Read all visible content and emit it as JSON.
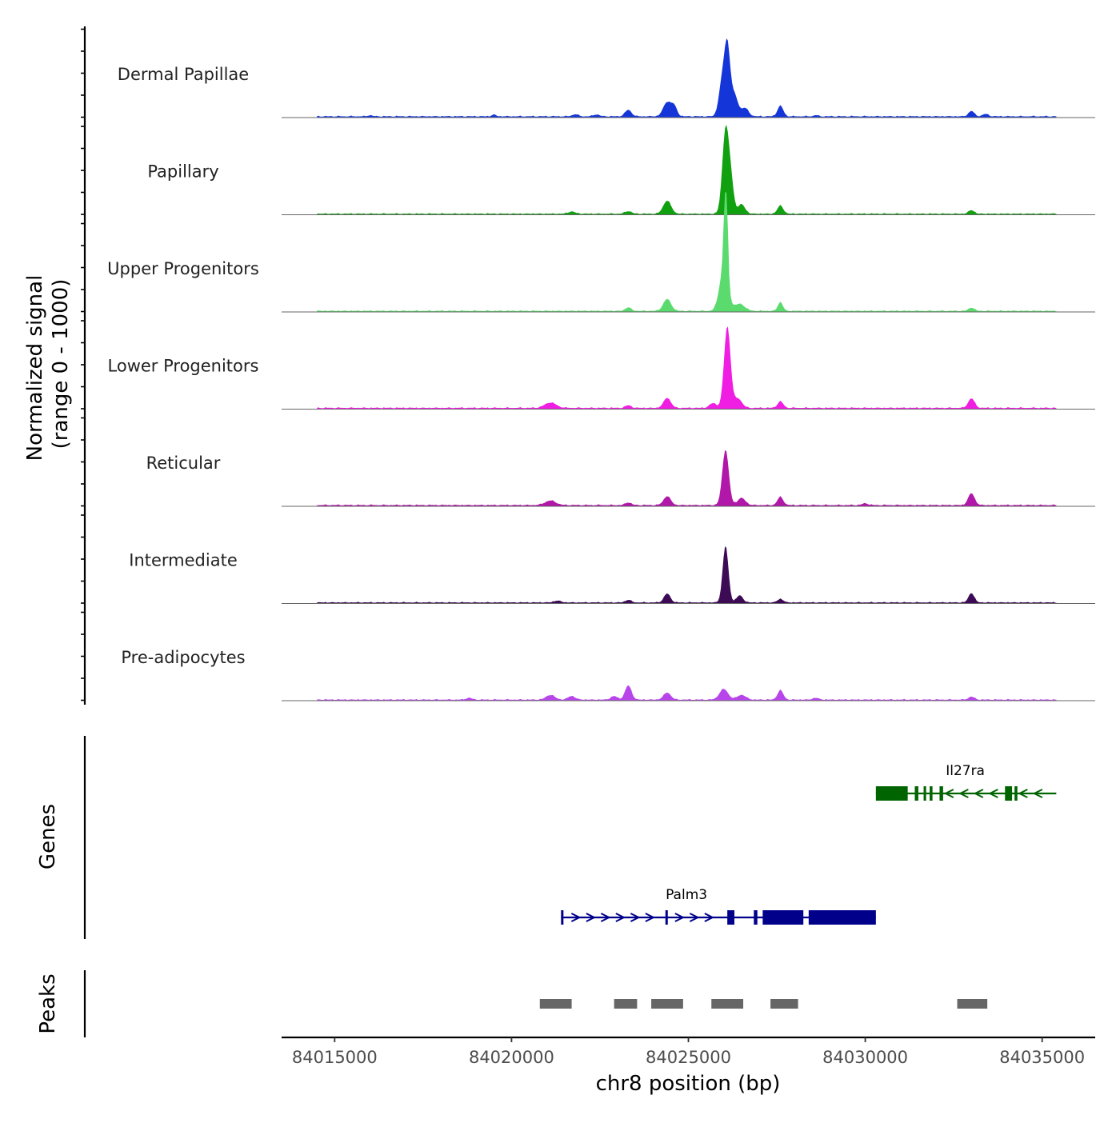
{
  "chart_data": {
    "type": "area",
    "chromosome": "chr8",
    "xlabel": "chr8 position (bp)",
    "xlim": [
      84013500,
      84036500
    ],
    "xticks": [
      84015000,
      84020000,
      84025000,
      84030000,
      84035000
    ],
    "xtick_labels": [
      "84015000",
      "84020000",
      "84025000",
      "84030000",
      "84035000"
    ],
    "coverage_ylabel": [
      "Normalized signal",
      "(range 0 - 1000)"
    ],
    "ylim": [
      0,
      1000
    ],
    "genes_label": "Genes",
    "peaks_label": "Peaks",
    "tracks": [
      {
        "name": "Dermal Papillae",
        "color": "#1436d9",
        "baseline": 8,
        "peaks": [
          [
            84016000,
            10,
            60
          ],
          [
            84019500,
            14,
            60
          ],
          [
            84021800,
            18,
            80
          ],
          [
            84022400,
            16,
            80
          ],
          [
            84023300,
            55,
            90
          ],
          [
            84024400,
            120,
            110
          ],
          [
            84024600,
            80,
            80
          ],
          [
            84025950,
            280,
            90
          ],
          [
            84026100,
            560,
            80
          ],
          [
            84026300,
            180,
            100
          ],
          [
            84026600,
            70,
            100
          ],
          [
            84027600,
            90,
            80
          ],
          [
            84028600,
            10,
            60
          ],
          [
            84033000,
            45,
            80
          ],
          [
            84033400,
            20,
            80
          ]
        ]
      },
      {
        "name": "Papillary",
        "color": "#11a00f",
        "baseline": 6,
        "peaks": [
          [
            84021700,
            18,
            100
          ],
          [
            84023300,
            22,
            90
          ],
          [
            84024400,
            110,
            110
          ],
          [
            84026050,
            700,
            90
          ],
          [
            84026200,
            250,
            80
          ],
          [
            84026500,
            80,
            100
          ],
          [
            84027600,
            70,
            80
          ],
          [
            84033000,
            30,
            80
          ]
        ]
      },
      {
        "name": "Upper Progenitors",
        "color": "#5bdb6e",
        "baseline": 6,
        "peaks": [
          [
            84023300,
            30,
            80
          ],
          [
            84024400,
            100,
            110
          ],
          [
            84026000,
            350,
            120
          ],
          [
            84026060,
            880,
            50
          ],
          [
            84026450,
            60,
            140
          ],
          [
            84027600,
            75,
            70
          ],
          [
            84033000,
            28,
            80
          ]
        ]
      },
      {
        "name": "Lower Progenitors",
        "color": "#f01ee2",
        "baseline": 8,
        "peaks": [
          [
            84021100,
            45,
            160
          ],
          [
            84023300,
            22,
            80
          ],
          [
            84024400,
            85,
            100
          ],
          [
            84025700,
            40,
            100
          ],
          [
            84026100,
            690,
            90
          ],
          [
            84026400,
            80,
            110
          ],
          [
            84027600,
            55,
            80
          ],
          [
            84033000,
            80,
            90
          ]
        ]
      },
      {
        "name": "Reticular",
        "color": "#b117a8",
        "baseline": 8,
        "peaks": [
          [
            84021100,
            38,
            150
          ],
          [
            84023300,
            22,
            80
          ],
          [
            84024400,
            75,
            100
          ],
          [
            84026050,
            470,
            90
          ],
          [
            84026500,
            60,
            110
          ],
          [
            84027600,
            70,
            80
          ],
          [
            84030000,
            15,
            80
          ],
          [
            84033000,
            100,
            90
          ]
        ]
      },
      {
        "name": "Intermediate",
        "color": "#3d0a56",
        "baseline": 6,
        "peaks": [
          [
            84021300,
            15,
            100
          ],
          [
            84023300,
            22,
            80
          ],
          [
            84024400,
            75,
            90
          ],
          [
            84026050,
            480,
            80
          ],
          [
            84026450,
            60,
            90
          ],
          [
            84027600,
            30,
            80
          ],
          [
            84033000,
            80,
            80
          ]
        ]
      },
      {
        "name": "Pre-adipocytes",
        "color": "#b845ea",
        "baseline": 6,
        "peaks": [
          [
            84018800,
            15,
            80
          ],
          [
            84021100,
            40,
            120
          ],
          [
            84021700,
            30,
            100
          ],
          [
            84022900,
            30,
            90
          ],
          [
            84023300,
            120,
            90
          ],
          [
            84024400,
            60,
            100
          ],
          [
            84026000,
            90,
            120
          ],
          [
            84026500,
            40,
            120
          ],
          [
            84027600,
            80,
            80
          ],
          [
            84028600,
            15,
            80
          ],
          [
            84033000,
            25,
            80
          ]
        ]
      }
    ],
    "genes": [
      {
        "name": "Il27ra",
        "strand": "-",
        "color": "#006400",
        "start": 84030300,
        "end": 84035400,
        "exons": [
          [
            84030300,
            84031200
          ],
          [
            84031400,
            84031500
          ],
          [
            84031650,
            84031720
          ],
          [
            84031820,
            84031900
          ],
          [
            84032100,
            84032200
          ],
          [
            84033950,
            84034150
          ],
          [
            84034220,
            84034300
          ]
        ]
      },
      {
        "name": "Palm3",
        "strand": "+",
        "color": "#00008b",
        "start": 84021400,
        "end": 84030300,
        "exons": [
          [
            84021400,
            84021450
          ],
          [
            84024350,
            84024400
          ],
          [
            84026100,
            84026300
          ],
          [
            84026850,
            84026950
          ],
          [
            84027100,
            84028250
          ],
          [
            84028400,
            84030300
          ]
        ]
      }
    ],
    "peaks": [
      [
        84020800,
        84021700
      ],
      [
        84022900,
        84023550
      ],
      [
        84023950,
        84024850
      ],
      [
        84025650,
        84026550
      ],
      [
        84027320,
        84028100
      ],
      [
        84032600,
        84033450
      ]
    ]
  }
}
